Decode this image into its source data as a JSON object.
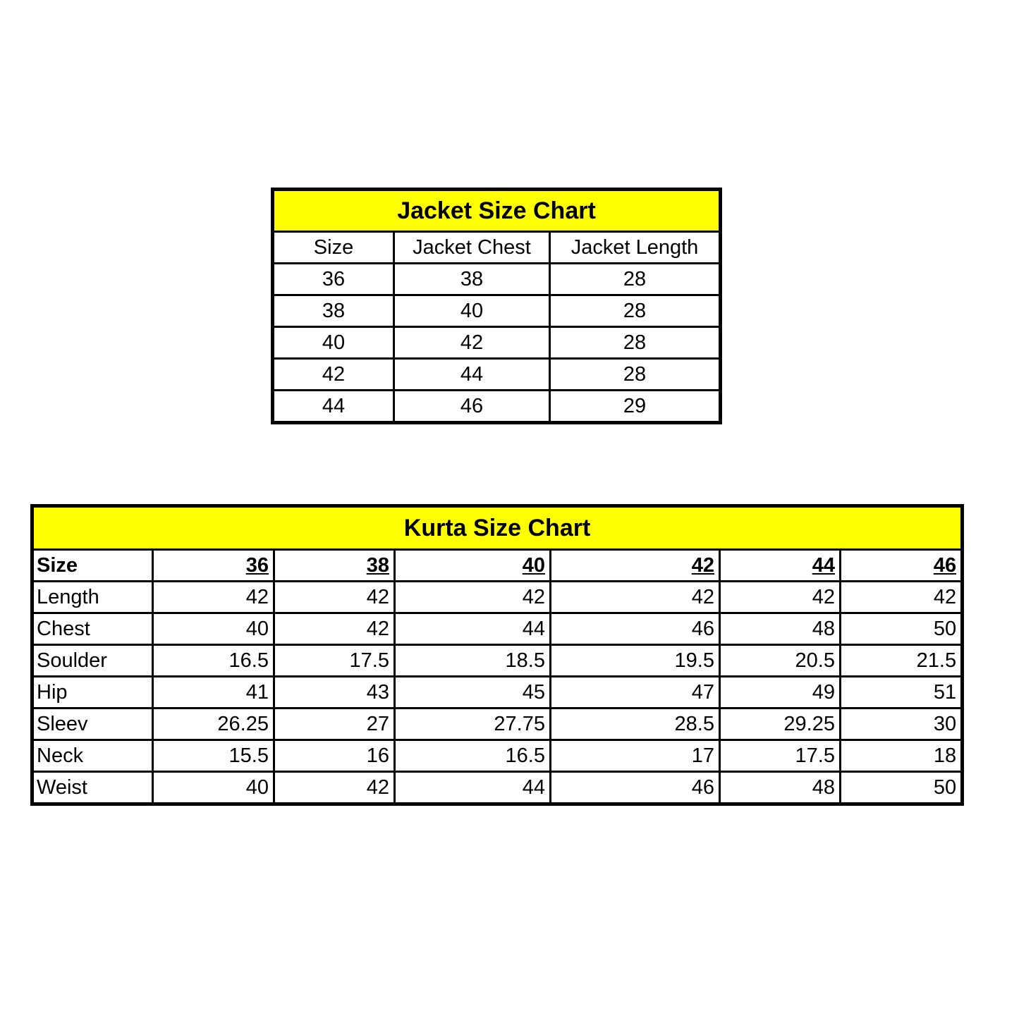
{
  "jacket": {
    "title": "Jacket Size Chart",
    "headers": [
      "Size",
      "Jacket Chest",
      "Jacket Length"
    ],
    "rows": [
      [
        "36",
        "38",
        "28"
      ],
      [
        "38",
        "40",
        "28"
      ],
      [
        "40",
        "42",
        "28"
      ],
      [
        "42",
        "44",
        "28"
      ],
      [
        "44",
        "46",
        "29"
      ]
    ]
  },
  "kurta": {
    "title": "Kurta Size Chart",
    "header_label": "Size",
    "sizes": [
      "36",
      "38",
      "40",
      "42",
      "44",
      "46"
    ],
    "rows": [
      {
        "label": "Length",
        "values": [
          "42",
          "42",
          "42",
          "42",
          "42",
          "42"
        ]
      },
      {
        "label": "Chest",
        "values": [
          "40",
          "42",
          "44",
          "46",
          "48",
          "50"
        ]
      },
      {
        "label": "Soulder",
        "values": [
          "16.5",
          "17.5",
          "18.5",
          "19.5",
          "20.5",
          "21.5"
        ]
      },
      {
        "label": "Hip",
        "values": [
          "41",
          "43",
          "45",
          "47",
          "49",
          "51"
        ]
      },
      {
        "label": "Sleev",
        "values": [
          "26.25",
          "27",
          "27.75",
          "28.5",
          "29.25",
          "30"
        ]
      },
      {
        "label": "Neck",
        "values": [
          "15.5",
          "16",
          "16.5",
          "17",
          "17.5",
          "18"
        ]
      },
      {
        "label": "Weist",
        "values": [
          "40",
          "42",
          "44",
          "46",
          "48",
          "50"
        ]
      }
    ]
  },
  "colors": {
    "header_fill": "#ffff00",
    "border": "#000000"
  }
}
